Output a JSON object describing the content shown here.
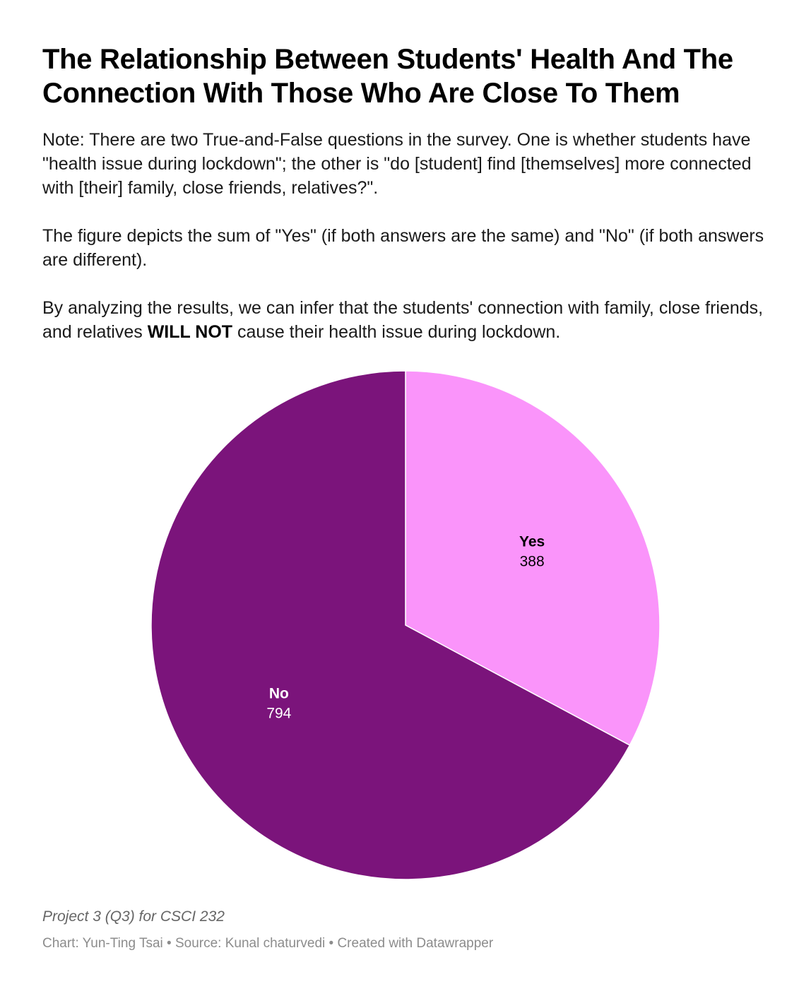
{
  "title": "The Relationship Between Students' Health And The Connection With Those Who Are Close To Them",
  "description": {
    "p1": "Note: There are two True-and-False questions in the survey. One is whether students have \"health issue during lockdown\"; the other is \"do [student] find [themselves] more connected with [their] family, close friends, relatives?\".",
    "p2": "The figure depicts the sum of \"Yes\" (if both answers are the same) and \"No\" (if both answers are different).",
    "p3_before": "By analyzing the results, we can infer that the students' connection with family, close friends, and relatives ",
    "p3_bold": "WILL NOT",
    "p3_after": " cause their health issue during lockdown."
  },
  "chart_data": {
    "type": "pie",
    "slices": [
      {
        "label": "Yes",
        "value": 388,
        "color": "#fa94fa",
        "text_color": "#000000"
      },
      {
        "label": "No",
        "value": 794,
        "color": "#7b147b",
        "text_color": "#ffffff"
      }
    ],
    "start": "12 o'clock",
    "direction": "clockwise"
  },
  "notes": "Project 3 (Q3) for CSCI 232",
  "footer": "Chart: Yun-Ting Tsai • Source: Kunal chaturvedi • Created with Datawrapper"
}
